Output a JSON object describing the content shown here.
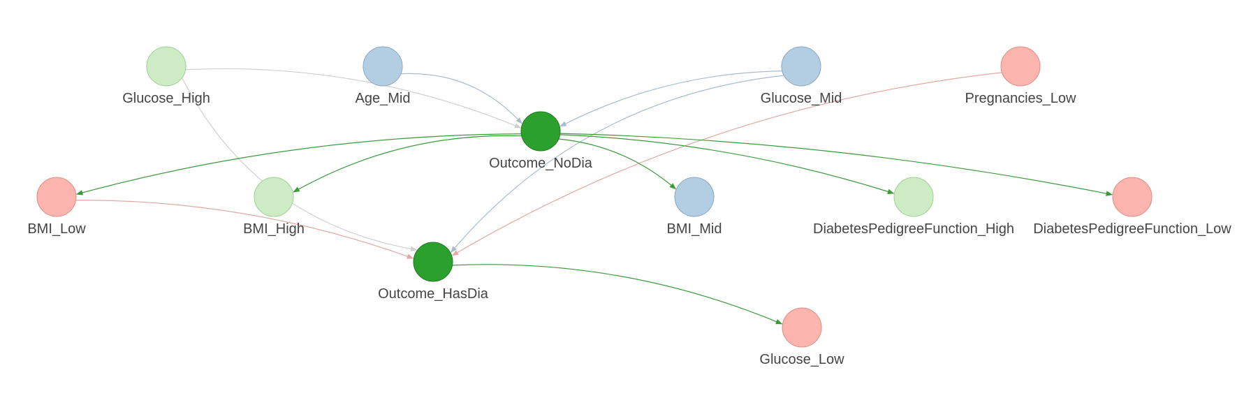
{
  "colors": {
    "green_light": "#cdebc5",
    "green_light_stroke": "#9fcf92",
    "blue": "#b3cde3",
    "blue_stroke": "#8aa6c1",
    "red": "#fbb4ae",
    "red_stroke": "#e08b84",
    "green_dark": "#2ca02c",
    "green_dark_stroke": "#1f7a1f"
  },
  "nodes": [
    {
      "id": "glucose_high",
      "label": "Glucose_High",
      "color": "green_light"
    },
    {
      "id": "age_mid",
      "label": "Age_Mid",
      "color": "blue"
    },
    {
      "id": "glucose_mid",
      "label": "Glucose_Mid",
      "color": "blue"
    },
    {
      "id": "pregnancies_low",
      "label": "Pregnancies_Low",
      "color": "red"
    },
    {
      "id": "outcome_nodia",
      "label": "Outcome_NoDia",
      "color": "green_dark"
    },
    {
      "id": "bmi_low",
      "label": "BMI_Low",
      "color": "red"
    },
    {
      "id": "bmi_high",
      "label": "BMI_High",
      "color": "green_light"
    },
    {
      "id": "bmi_mid",
      "label": "BMI_Mid",
      "color": "blue"
    },
    {
      "id": "dpf_high",
      "label": "DiabetesPedigreeFunction_High",
      "color": "green_light"
    },
    {
      "id": "dpf_low",
      "label": "DiabetesPedigreeFunction_Low",
      "color": "red"
    },
    {
      "id": "outcome_hasdia",
      "label": "Outcome_HasDia",
      "color": "green_dark"
    },
    {
      "id": "glucose_low",
      "label": "Glucose_Low",
      "color": "red"
    }
  ],
  "edges": [
    {
      "from": "glucose_high",
      "to": "outcome_nodia",
      "color": "#cfcfcf"
    },
    {
      "from": "glucose_high",
      "to": "outcome_hasdia",
      "color": "#cfcfcf"
    },
    {
      "from": "age_mid",
      "to": "outcome_nodia",
      "color": "#a9bccf"
    },
    {
      "from": "glucose_mid",
      "to": "outcome_nodia",
      "color": "#a9bccf"
    },
    {
      "from": "glucose_mid",
      "to": "outcome_hasdia",
      "color": "#a9bccf"
    },
    {
      "from": "pregnancies_low",
      "to": "outcome_hasdia",
      "color": "#e3a9a4"
    },
    {
      "from": "bmi_low",
      "to": "outcome_hasdia",
      "color": "#e3a9a4"
    },
    {
      "from": "outcome_nodia",
      "to": "bmi_low",
      "color": "#3a9a3a"
    },
    {
      "from": "outcome_nodia",
      "to": "bmi_high",
      "color": "#3a9a3a"
    },
    {
      "from": "outcome_nodia",
      "to": "bmi_mid",
      "color": "#3a9a3a"
    },
    {
      "from": "outcome_nodia",
      "to": "dpf_high",
      "color": "#3a9a3a"
    },
    {
      "from": "outcome_nodia",
      "to": "dpf_low",
      "color": "#3a9a3a"
    },
    {
      "from": "outcome_hasdia",
      "to": "glucose_low",
      "color": "#3a9a3a"
    }
  ]
}
